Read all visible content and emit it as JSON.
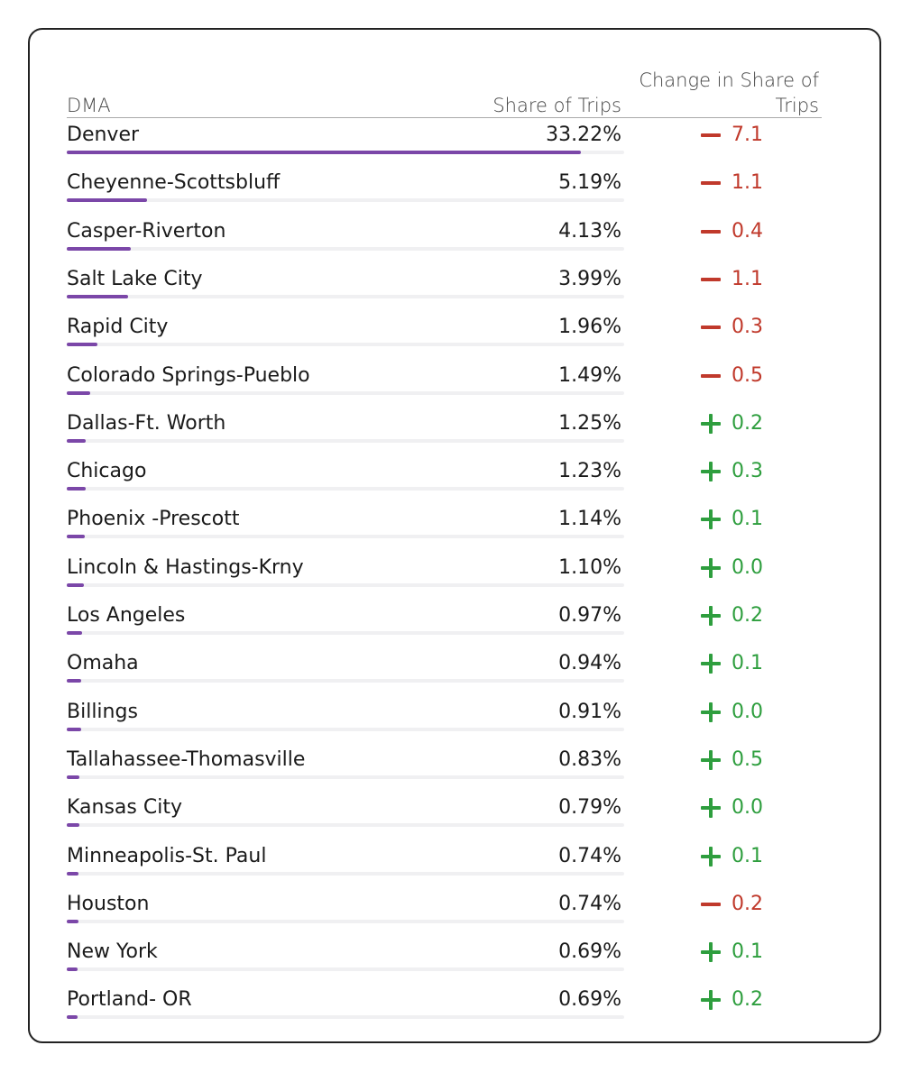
{
  "chart_data": {
    "type": "table",
    "columns": [
      "DMA",
      "Share of Trips",
      "Change in Share of Trips"
    ],
    "share_max": 36,
    "rows": [
      {
        "dma": "Denver",
        "share": "33.22%",
        "share_value": 33.22,
        "direction": "down",
        "change": "7.1"
      },
      {
        "dma": "Cheyenne-Scottsbluff",
        "share": "5.19%",
        "share_value": 5.19,
        "direction": "down",
        "change": "1.1"
      },
      {
        "dma": "Casper-Riverton",
        "share": "4.13%",
        "share_value": 4.13,
        "direction": "down",
        "change": "0.4"
      },
      {
        "dma": "Salt Lake City",
        "share": "3.99%",
        "share_value": 3.99,
        "direction": "down",
        "change": "1.1"
      },
      {
        "dma": "Rapid City",
        "share": "1.96%",
        "share_value": 1.96,
        "direction": "down",
        "change": "0.3"
      },
      {
        "dma": "Colorado Springs-Pueblo",
        "share": "1.49%",
        "share_value": 1.49,
        "direction": "down",
        "change": "0.5"
      },
      {
        "dma": "Dallas-Ft. Worth",
        "share": "1.25%",
        "share_value": 1.25,
        "direction": "up",
        "change": "0.2"
      },
      {
        "dma": "Chicago",
        "share": "1.23%",
        "share_value": 1.23,
        "direction": "up",
        "change": "0.3"
      },
      {
        "dma": "Phoenix -Prescott",
        "share": "1.14%",
        "share_value": 1.14,
        "direction": "up",
        "change": "0.1"
      },
      {
        "dma": "Lincoln & Hastings-Krny",
        "share": "1.10%",
        "share_value": 1.1,
        "direction": "up",
        "change": "0.0"
      },
      {
        "dma": "Los Angeles",
        "share": "0.97%",
        "share_value": 0.97,
        "direction": "up",
        "change": "0.2"
      },
      {
        "dma": "Omaha",
        "share": "0.94%",
        "share_value": 0.94,
        "direction": "up",
        "change": "0.1"
      },
      {
        "dma": "Billings",
        "share": "0.91%",
        "share_value": 0.91,
        "direction": "up",
        "change": "0.0"
      },
      {
        "dma": "Tallahassee-Thomasville",
        "share": "0.83%",
        "share_value": 0.83,
        "direction": "up",
        "change": "0.5"
      },
      {
        "dma": "Kansas City",
        "share": "0.79%",
        "share_value": 0.79,
        "direction": "up",
        "change": "0.0"
      },
      {
        "dma": "Minneapolis-St. Paul",
        "share": "0.74%",
        "share_value": 0.74,
        "direction": "up",
        "change": "0.1"
      },
      {
        "dma": "Houston",
        "share": "0.74%",
        "share_value": 0.74,
        "direction": "down",
        "change": "0.2"
      },
      {
        "dma": "New York",
        "share": "0.69%",
        "share_value": 0.69,
        "direction": "up",
        "change": "0.1"
      },
      {
        "dma": "Portland- OR",
        "share": "0.69%",
        "share_value": 0.69,
        "direction": "up",
        "change": "0.2"
      }
    ],
    "colors": {
      "bar": "#7b47a8",
      "negative": "#c0392b",
      "positive": "#2e9e3e"
    }
  }
}
